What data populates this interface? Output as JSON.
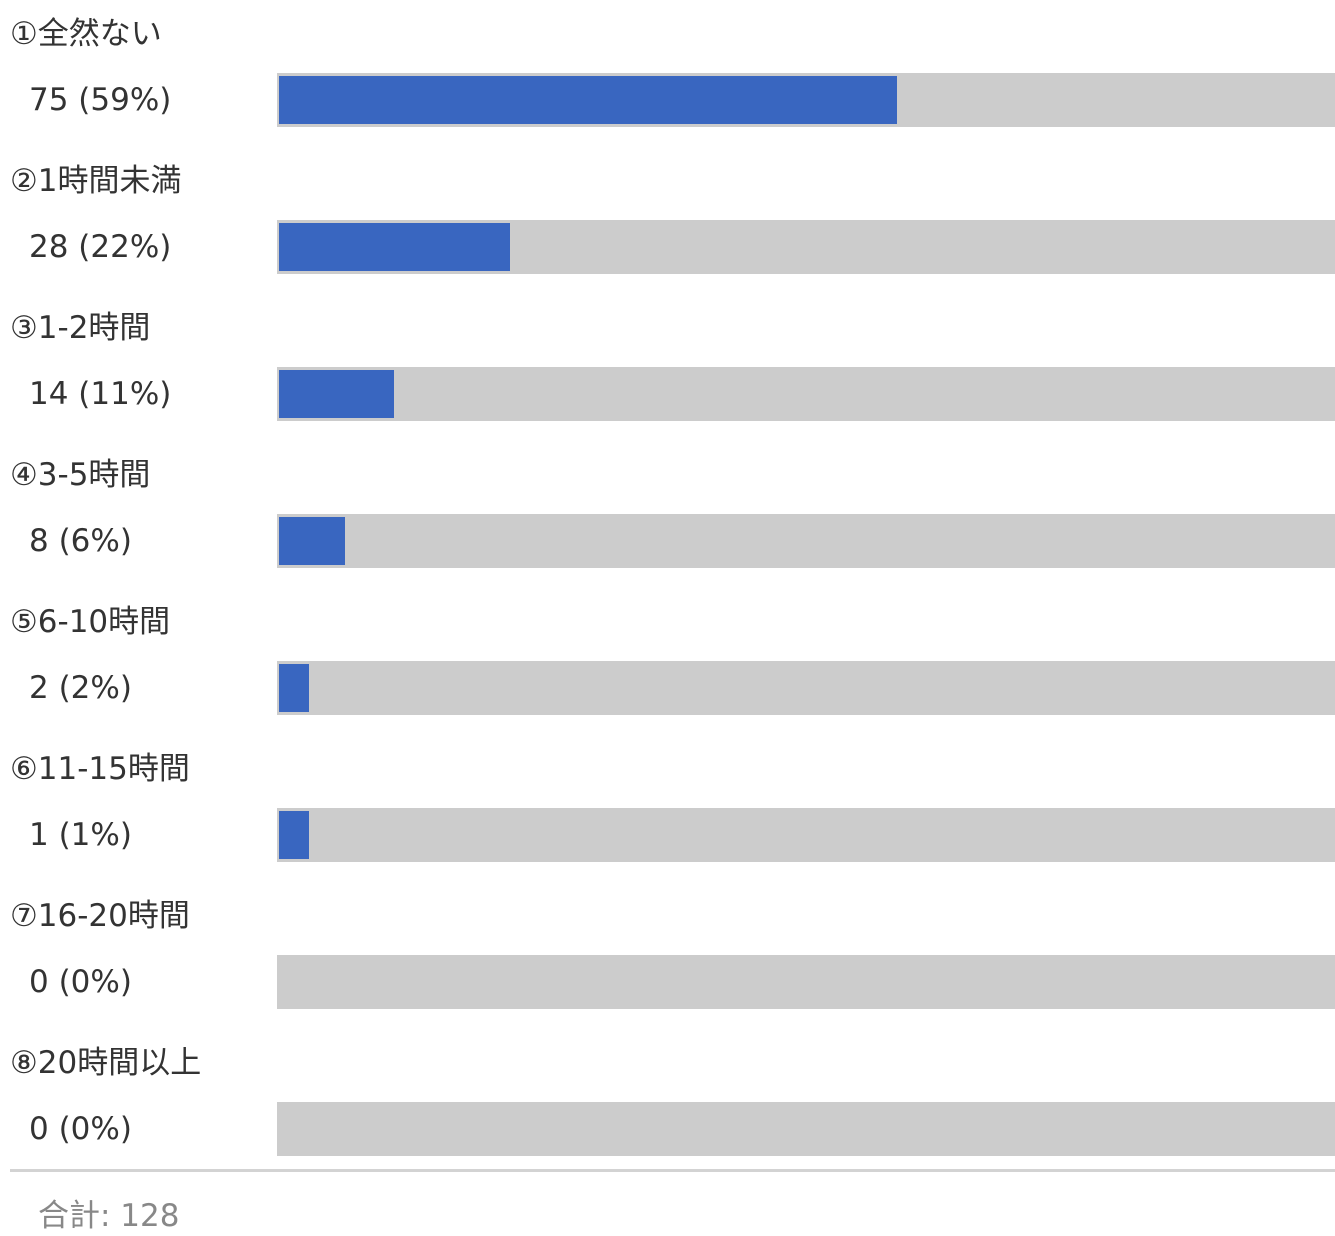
{
  "chart_data": {
    "type": "bar",
    "orientation": "horizontal",
    "categories": [
      "①全然ない",
      "②1時間未満",
      "③1-2時間",
      "④3-5時間",
      "⑤6-10時間",
      "⑥11-15時間",
      "⑦16-20時間",
      "⑧20時間以上"
    ],
    "values": [
      75,
      28,
      14,
      8,
      2,
      1,
      0,
      0
    ],
    "percent_labels": [
      "75 (59%)",
      "28 (22%)",
      "14 (11%)",
      "8 (6%)",
      "2 (2%)",
      "1 (1%)",
      "0 (0%)",
      "0 (0%)"
    ],
    "total_label": "合計: 128",
    "total": 128,
    "xlim": [
      0,
      128
    ],
    "grid": false,
    "colors": {
      "bar": "#3966c0",
      "track": "#cccccc",
      "divider": "#d3d3d3",
      "text": "#333333",
      "total_text": "#888888"
    }
  }
}
